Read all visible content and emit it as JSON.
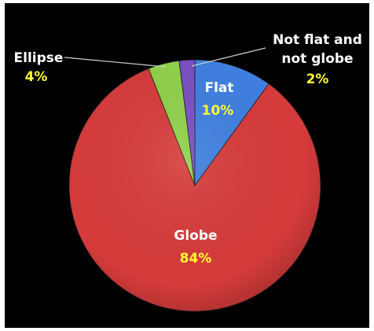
{
  "colors": {
    "background": "#000000",
    "label_white": "#ffffff",
    "value_yellow": "#ffff33"
  },
  "chart_data": {
    "type": "pie",
    "title": "",
    "slices": [
      {
        "label": "Flat",
        "value": 10,
        "value_label": "10%",
        "color": "#3f7fe0"
      },
      {
        "label": "Globe",
        "value": 84,
        "value_label": "84%",
        "color": "#d63b3b"
      },
      {
        "label": "Ellipse",
        "value": 4,
        "value_label": "4%",
        "color": "#8fd14a"
      },
      {
        "label": "Not flat and not globe",
        "value": 2,
        "value_label": "2%",
        "color": "#7a4fc4"
      }
    ],
    "start": "12 o'clock",
    "direction": "clockwise",
    "legend": "none",
    "labels": "on-chart with leader lines for Ellipse and Not flat and not globe"
  }
}
